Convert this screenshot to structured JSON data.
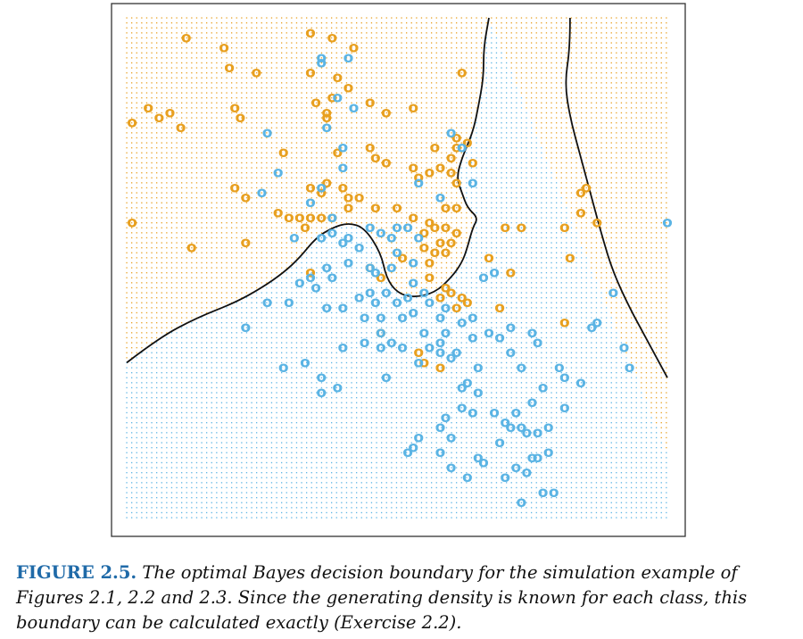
{
  "caption": {
    "label": "FIGURE 2.5.",
    "text": "The optimal Bayes decision boundary for the simulation example of Figures 2.1, 2.2 and 2.3. Since the generating density is known for each class, this boundary can be calculated exactly (Exercise 2.2)."
  },
  "colors": {
    "orange": "#e8a020",
    "blue": "#5bb4e4",
    "boundary": "#111111",
    "frame": "#333333"
  },
  "chart_data": {
    "type": "scatter",
    "title": "",
    "xlabel": "",
    "ylabel": "",
    "grid": false,
    "legend": "none",
    "marker_symbol": "o",
    "xlim": [
      0,
      1
    ],
    "ylim": [
      0,
      1
    ],
    "series": [
      {
        "color": "orange",
        "points": [
          [
            0.11,
            0.96
          ],
          [
            0.18,
            0.94
          ],
          [
            0.34,
            0.97
          ],
          [
            0.38,
            0.96
          ],
          [
            0.42,
            0.94
          ],
          [
            0.19,
            0.9
          ],
          [
            0.24,
            0.89
          ],
          [
            0.34,
            0.89
          ],
          [
            0.39,
            0.88
          ],
          [
            0.41,
            0.86
          ],
          [
            0.38,
            0.84
          ],
          [
            0.35,
            0.83
          ],
          [
            0.37,
            0.81
          ],
          [
            0.45,
            0.83
          ],
          [
            0.48,
            0.81
          ],
          [
            0.53,
            0.82
          ],
          [
            0.04,
            0.82
          ],
          [
            0.06,
            0.8
          ],
          [
            0.08,
            0.81
          ],
          [
            0.1,
            0.78
          ],
          [
            0.2,
            0.82
          ],
          [
            0.21,
            0.8
          ],
          [
            0.01,
            0.79
          ],
          [
            0.37,
            0.8
          ],
          [
            0.62,
            0.89
          ],
          [
            0.61,
            0.76
          ],
          [
            0.63,
            0.75
          ],
          [
            0.29,
            0.73
          ],
          [
            0.45,
            0.74
          ],
          [
            0.46,
            0.72
          ],
          [
            0.48,
            0.71
          ],
          [
            0.39,
            0.73
          ],
          [
            0.57,
            0.74
          ],
          [
            0.61,
            0.74
          ],
          [
            0.6,
            0.72
          ],
          [
            0.64,
            0.71
          ],
          [
            0.58,
            0.7
          ],
          [
            0.53,
            0.7
          ],
          [
            0.56,
            0.69
          ],
          [
            0.6,
            0.69
          ],
          [
            0.54,
            0.68
          ],
          [
            0.61,
            0.67
          ],
          [
            0.37,
            0.67
          ],
          [
            0.4,
            0.66
          ],
          [
            0.34,
            0.66
          ],
          [
            0.36,
            0.65
          ],
          [
            0.41,
            0.64
          ],
          [
            0.43,
            0.64
          ],
          [
            0.2,
            0.66
          ],
          [
            0.22,
            0.64
          ],
          [
            0.41,
            0.62
          ],
          [
            0.46,
            0.62
          ],
          [
            0.5,
            0.62
          ],
          [
            0.59,
            0.62
          ],
          [
            0.61,
            0.62
          ],
          [
            0.28,
            0.61
          ],
          [
            0.3,
            0.6
          ],
          [
            0.32,
            0.6
          ],
          [
            0.34,
            0.6
          ],
          [
            0.36,
            0.6
          ],
          [
            0.38,
            0.6
          ],
          [
            0.33,
            0.58
          ],
          [
            0.53,
            0.6
          ],
          [
            0.56,
            0.59
          ],
          [
            0.57,
            0.58
          ],
          [
            0.59,
            0.58
          ],
          [
            0.55,
            0.57
          ],
          [
            0.61,
            0.57
          ],
          [
            0.58,
            0.55
          ],
          [
            0.6,
            0.55
          ],
          [
            0.55,
            0.54
          ],
          [
            0.57,
            0.53
          ],
          [
            0.59,
            0.53
          ],
          [
            0.51,
            0.52
          ],
          [
            0.56,
            0.51
          ],
          [
            0.01,
            0.59
          ],
          [
            0.12,
            0.54
          ],
          [
            0.22,
            0.55
          ],
          [
            0.67,
            0.52
          ],
          [
            0.71,
            0.49
          ],
          [
            0.34,
            0.49
          ],
          [
            0.45,
            0.5
          ],
          [
            0.47,
            0.48
          ],
          [
            0.56,
            0.48
          ],
          [
            0.59,
            0.46
          ],
          [
            0.6,
            0.45
          ],
          [
            0.62,
            0.44
          ],
          [
            0.63,
            0.43
          ],
          [
            0.61,
            0.42
          ],
          [
            0.58,
            0.44
          ],
          [
            0.69,
            0.42
          ],
          [
            0.81,
            0.58
          ],
          [
            0.84,
            0.61
          ],
          [
            0.87,
            0.59
          ],
          [
            0.84,
            0.65
          ],
          [
            0.85,
            0.66
          ],
          [
            0.82,
            0.52
          ],
          [
            0.81,
            0.39
          ],
          [
            0.47,
            0.37
          ],
          [
            0.54,
            0.33
          ],
          [
            0.55,
            0.31
          ],
          [
            0.58,
            0.3
          ],
          [
            0.73,
            0.58
          ],
          [
            0.7,
            0.58
          ]
        ]
      },
      {
        "color": "blue",
        "points": [
          [
            0.36,
            0.92
          ],
          [
            0.41,
            0.92
          ],
          [
            0.36,
            0.91
          ],
          [
            0.39,
            0.84
          ],
          [
            0.37,
            0.78
          ],
          [
            0.42,
            0.82
          ],
          [
            0.26,
            0.77
          ],
          [
            0.6,
            0.77
          ],
          [
            0.62,
            0.74
          ],
          [
            0.4,
            0.74
          ],
          [
            0.28,
            0.69
          ],
          [
            0.4,
            0.7
          ],
          [
            0.54,
            0.67
          ],
          [
            0.58,
            0.64
          ],
          [
            0.25,
            0.65
          ],
          [
            0.34,
            0.63
          ],
          [
            0.36,
            0.56
          ],
          [
            0.38,
            0.6
          ],
          [
            0.45,
            0.58
          ],
          [
            0.47,
            0.57
          ],
          [
            0.4,
            0.55
          ],
          [
            0.41,
            0.56
          ],
          [
            0.43,
            0.54
          ],
          [
            0.41,
            0.51
          ],
          [
            0.49,
            0.5
          ],
          [
            0.53,
            0.51
          ],
          [
            0.49,
            0.56
          ],
          [
            0.5,
            0.58
          ],
          [
            0.52,
            0.58
          ],
          [
            0.54,
            0.56
          ],
          [
            0.45,
            0.5
          ],
          [
            0.46,
            0.49
          ],
          [
            0.37,
            0.5
          ],
          [
            0.38,
            0.48
          ],
          [
            0.34,
            0.48
          ],
          [
            0.43,
            0.44
          ],
          [
            0.45,
            0.45
          ],
          [
            0.46,
            0.43
          ],
          [
            0.44,
            0.4
          ],
          [
            0.47,
            0.4
          ],
          [
            0.4,
            0.42
          ],
          [
            0.37,
            0.42
          ],
          [
            0.55,
            0.45
          ],
          [
            0.56,
            0.43
          ],
          [
            0.53,
            0.41
          ],
          [
            0.51,
            0.4
          ],
          [
            0.55,
            0.37
          ],
          [
            0.59,
            0.37
          ],
          [
            0.58,
            0.4
          ],
          [
            0.59,
            0.42
          ],
          [
            0.62,
            0.39
          ],
          [
            0.64,
            0.36
          ],
          [
            0.66,
            0.48
          ],
          [
            0.68,
            0.49
          ],
          [
            0.64,
            0.4
          ],
          [
            0.58,
            0.35
          ],
          [
            0.56,
            0.34
          ],
          [
            0.44,
            0.35
          ],
          [
            0.47,
            0.37
          ],
          [
            0.47,
            0.34
          ],
          [
            0.49,
            0.35
          ],
          [
            0.51,
            0.34
          ],
          [
            0.54,
            0.31
          ],
          [
            0.58,
            0.33
          ],
          [
            0.65,
            0.3
          ],
          [
            0.63,
            0.27
          ],
          [
            0.33,
            0.31
          ],
          [
            0.29,
            0.3
          ],
          [
            0.36,
            0.28
          ],
          [
            0.39,
            0.26
          ],
          [
            0.48,
            0.28
          ],
          [
            0.36,
            0.25
          ],
          [
            0.62,
            0.26
          ],
          [
            0.65,
            0.25
          ],
          [
            0.58,
            0.18
          ],
          [
            0.6,
            0.16
          ],
          [
            0.54,
            0.16
          ],
          [
            0.53,
            0.14
          ],
          [
            0.52,
            0.13
          ],
          [
            0.58,
            0.13
          ],
          [
            0.6,
            0.1
          ],
          [
            0.65,
            0.12
          ],
          [
            0.63,
            0.08
          ],
          [
            0.75,
            0.12
          ],
          [
            0.78,
            0.13
          ],
          [
            0.76,
            0.12
          ],
          [
            0.79,
            0.05
          ],
          [
            0.66,
            0.11
          ],
          [
            0.7,
            0.08
          ],
          [
            0.72,
            0.1
          ],
          [
            0.74,
            0.09
          ],
          [
            0.73,
            0.03
          ],
          [
            0.77,
            0.05
          ],
          [
            0.69,
            0.15
          ],
          [
            0.59,
            0.2
          ],
          [
            0.62,
            0.22
          ],
          [
            0.64,
            0.21
          ],
          [
            0.68,
            0.21
          ],
          [
            0.7,
            0.19
          ],
          [
            0.71,
            0.18
          ],
          [
            0.73,
            0.18
          ],
          [
            0.74,
            0.17
          ],
          [
            0.76,
            0.17
          ],
          [
            0.78,
            0.18
          ],
          [
            0.72,
            0.21
          ],
          [
            0.75,
            0.23
          ],
          [
            0.81,
            0.28
          ],
          [
            0.84,
            0.27
          ],
          [
            0.81,
            0.22
          ],
          [
            0.77,
            0.26
          ],
          [
            0.73,
            0.3
          ],
          [
            0.71,
            0.33
          ],
          [
            0.69,
            0.36
          ],
          [
            0.67,
            0.37
          ],
          [
            0.71,
            0.38
          ],
          [
            0.75,
            0.37
          ],
          [
            0.76,
            0.35
          ],
          [
            0.8,
            0.3
          ],
          [
            0.86,
            0.38
          ],
          [
            0.87,
            0.39
          ],
          [
            0.92,
            0.34
          ],
          [
            0.93,
            0.3
          ],
          [
            0.9,
            0.45
          ],
          [
            1.0,
            0.59
          ],
          [
            0.64,
            0.67
          ],
          [
            0.5,
            0.53
          ],
          [
            0.48,
            0.45
          ],
          [
            0.4,
            0.34
          ],
          [
            0.36,
            0.66
          ],
          [
            0.31,
            0.56
          ],
          [
            0.22,
            0.38
          ],
          [
            0.26,
            0.43
          ],
          [
            0.3,
            0.43
          ],
          [
            0.38,
            0.57
          ],
          [
            0.32,
            0.47
          ],
          [
            0.35,
            0.46
          ],
          [
            0.5,
            0.43
          ],
          [
            0.52,
            0.44
          ],
          [
            0.53,
            0.47
          ],
          [
            0.6,
            0.32
          ],
          [
            0.61,
            0.33
          ]
        ]
      }
    ],
    "boundary": [
      [
        [
          0.0,
          0.31
        ],
        [
          0.06,
          0.36
        ],
        [
          0.13,
          0.4
        ],
        [
          0.2,
          0.43
        ],
        [
          0.25,
          0.46
        ],
        [
          0.29,
          0.49
        ],
        [
          0.32,
          0.52
        ],
        [
          0.35,
          0.56
        ],
        [
          0.38,
          0.58
        ],
        [
          0.41,
          0.59
        ],
        [
          0.44,
          0.58
        ],
        [
          0.47,
          0.53
        ],
        [
          0.48,
          0.48
        ],
        [
          0.5,
          0.45
        ],
        [
          0.53,
          0.44
        ],
        [
          0.57,
          0.45
        ],
        [
          0.6,
          0.48
        ],
        [
          0.62,
          0.51
        ],
        [
          0.63,
          0.54
        ],
        [
          0.64,
          0.58
        ],
        [
          0.65,
          0.6
        ],
        [
          0.63,
          0.62
        ],
        [
          0.62,
          0.65
        ],
        [
          0.61,
          0.68
        ],
        [
          0.62,
          0.72
        ],
        [
          0.64,
          0.77
        ],
        [
          0.65,
          0.82
        ],
        [
          0.66,
          0.88
        ],
        [
          0.66,
          0.94
        ],
        [
          0.67,
          1.0
        ]
      ],
      [
        [
          0.82,
          1.0
        ],
        [
          0.82,
          0.94
        ],
        [
          0.81,
          0.87
        ],
        [
          0.82,
          0.8
        ],
        [
          0.84,
          0.72
        ],
        [
          0.86,
          0.64
        ],
        [
          0.88,
          0.56
        ],
        [
          0.9,
          0.49
        ],
        [
          0.93,
          0.42
        ],
        [
          0.96,
          0.36
        ],
        [
          1.0,
          0.28
        ]
      ]
    ]
  }
}
